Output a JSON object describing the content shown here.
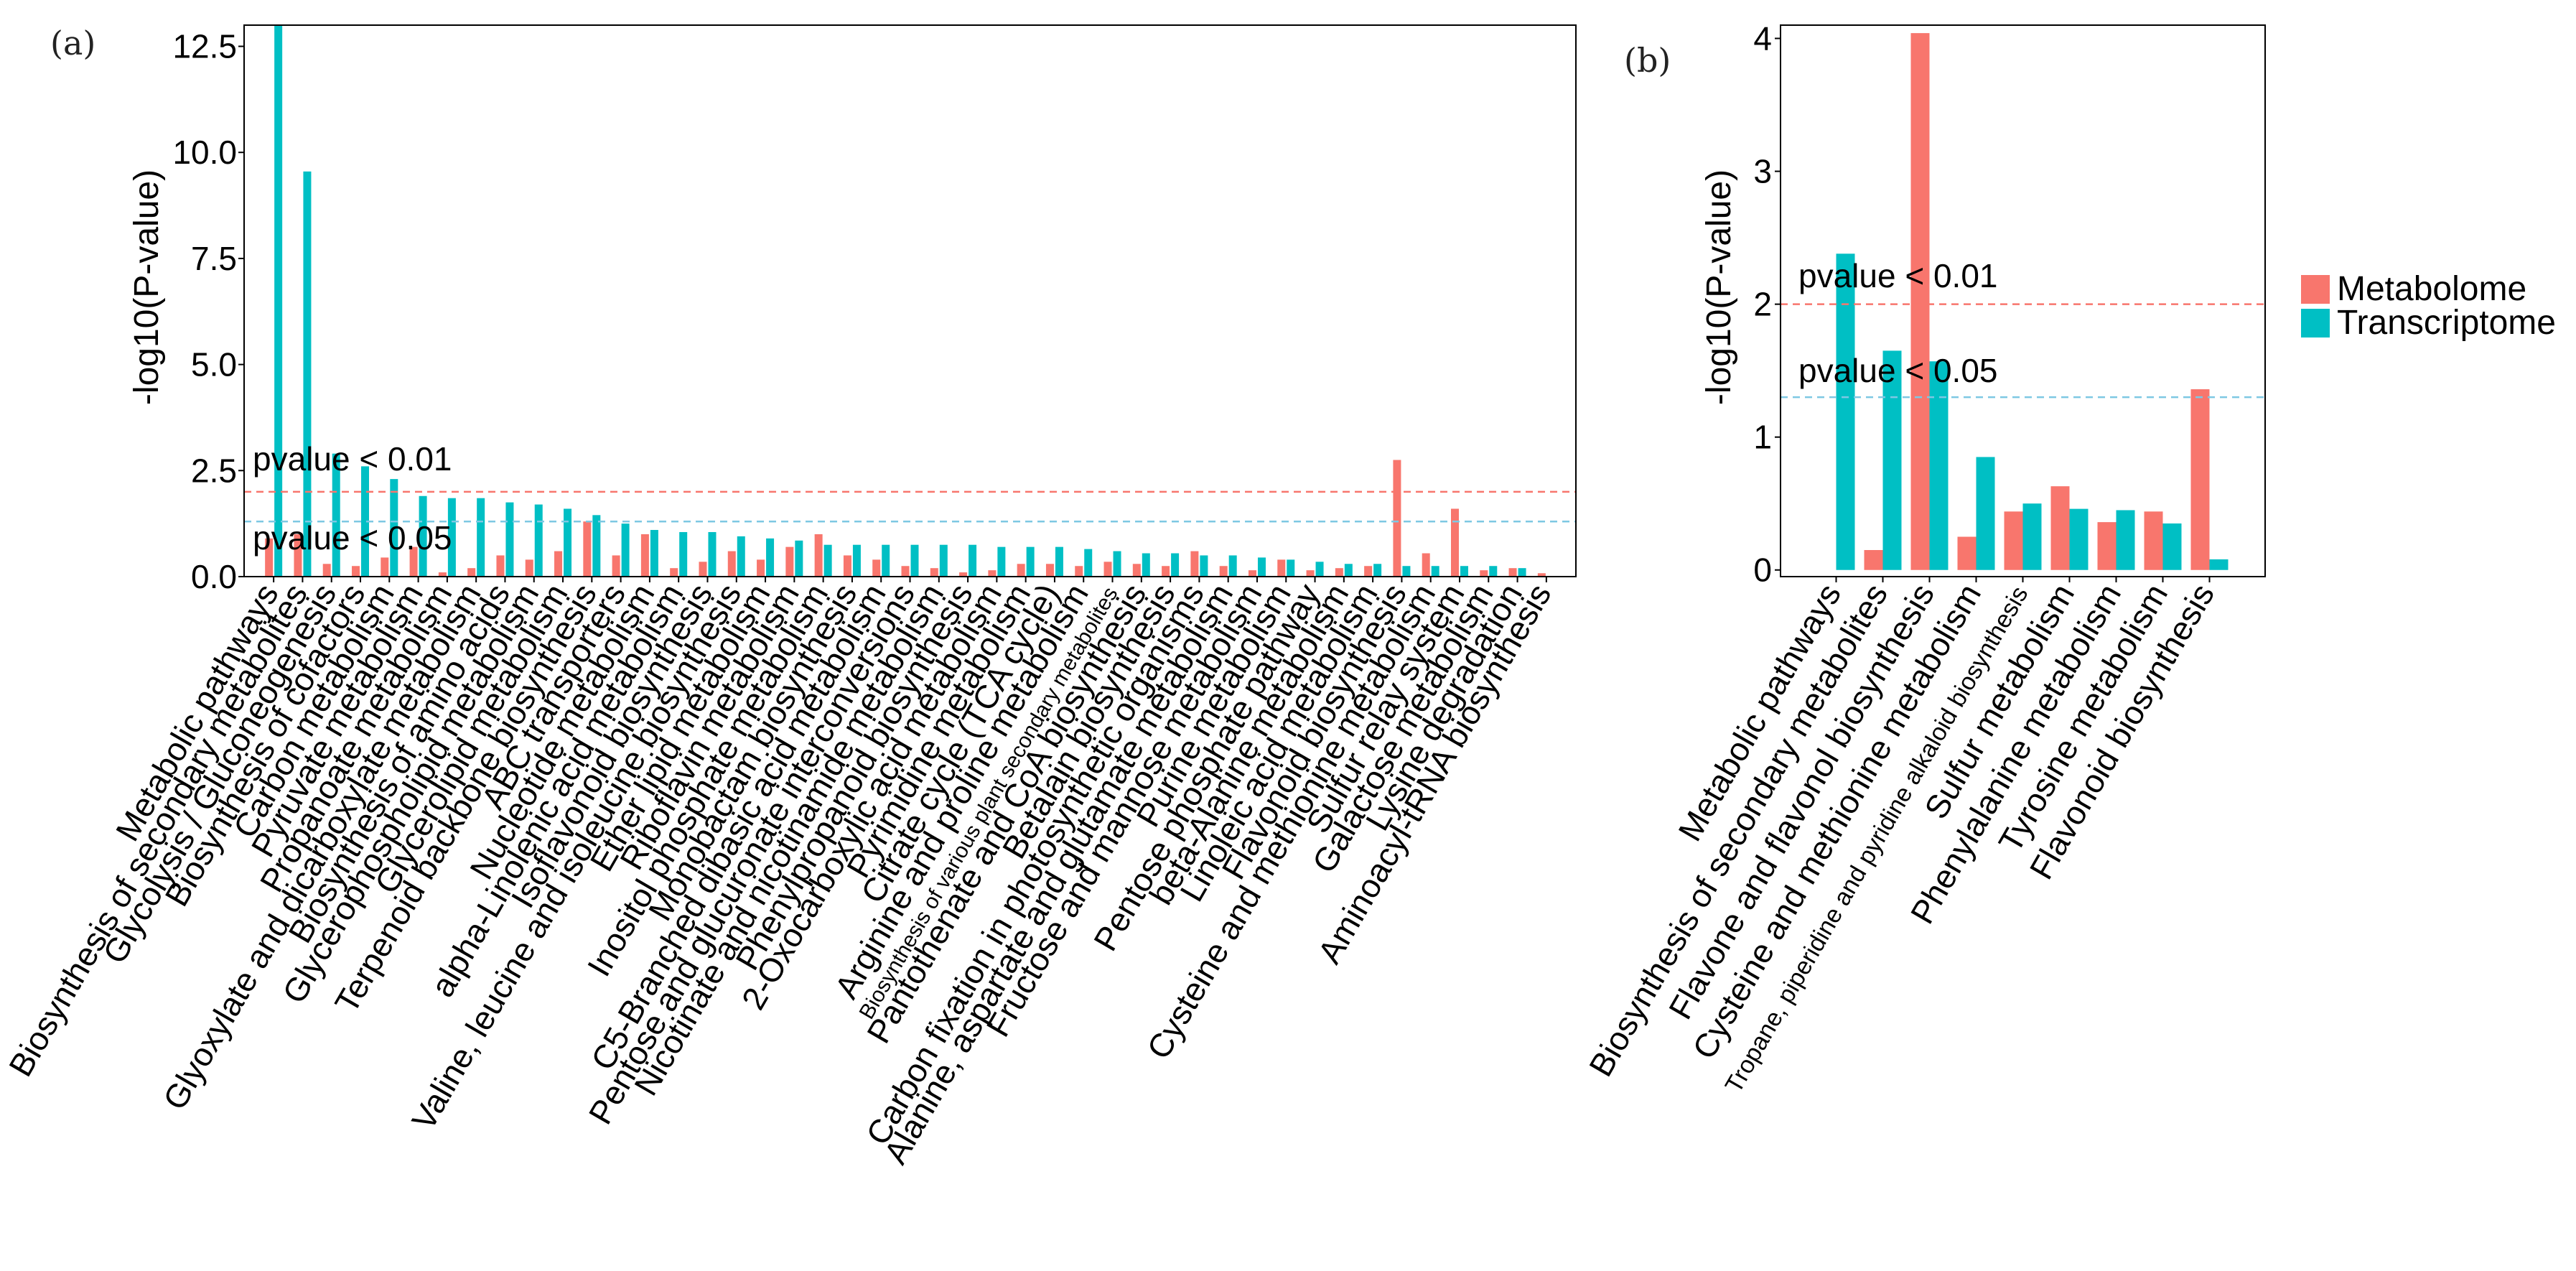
{
  "colors": {
    "metabolome": "#F8766D",
    "transcriptome": "#00BFC4",
    "thr001": "#F8766D",
    "thr005": "#7EC8E3"
  },
  "legend": {
    "items": [
      "Metabolome",
      "Transcriptome"
    ]
  },
  "chart_data": [
    {
      "type": "bar",
      "panel_label": "(a)",
      "ylabel": "-log10(P-value)",
      "ylim": [
        0,
        13
      ],
      "yticks": [
        0.0,
        2.5,
        5.0,
        7.5,
        10.0,
        12.5
      ],
      "ytick_labels": [
        "0.0",
        "2.5",
        "5.0",
        "7.5",
        "10.0",
        "12.5"
      ],
      "thresholds": [
        {
          "label": "pvalue < 0.01",
          "value": 2.0
        },
        {
          "label": "pvalue < 0.05",
          "value": 1.3
        }
      ],
      "categories": [
        "Metabolic pathways",
        "Biosynthesis of secondary metabolites",
        "Glycolysis / Gluconeogenesis",
        "Biosynthesis of cofactors",
        "Carbon metabolism",
        "Pyruvate metabolism",
        "Propanoate metabolism",
        "Glyoxylate and dicarboxylate metabolism",
        "Biosynthesis of amino acids",
        "Glycerophospholipid metabolism",
        "Glycerolipid metabolism",
        "Terpenoid backbone biosynthesis",
        "ABC transporters",
        "Nucleotide metabolism",
        "alpha-Linolenic acid metabolism",
        "Isoflavonoid biosynthesis",
        "Valine, leucine and isoleucine biosynthesis",
        "Ether lipid metabolism",
        "Riboflavin metabolism",
        "Inositol phosphate metabolism",
        "Monobactam biosynthesis",
        "C5-Branched dibasic acid metabolism",
        "Pentose and glucuronate interconversions",
        "Nicotinate and nicotinamide metabolism",
        "Phenylpropanoid biosynthesis",
        "2-Oxocarboxylic acid metabolism",
        "Pyrimidine metabolism",
        "Citrate cycle (TCA cycle)",
        "Arginine and proline metabolism",
        "Biosynthesis of various plant secondary metabolites",
        "Pantothenate and CoA biosynthesis",
        "Betalain biosynthesis",
        "Carbon fixation in photosynthetic organisms",
        "Alanine, aspartate and glutamate metabolism",
        "Fructose and mannose metabolism",
        "Purine metabolism",
        "Pentose phosphate pathway",
        "beta-Alanine metabolism",
        "Linoleic acid metabolism",
        "Flavonoid biosynthesis",
        "Cysteine and methionine metabolism",
        "Sulfur relay system",
        "Galactose metabolism",
        "Lysine degradation",
        "Aminoacyl-tRNA biosynthesis"
      ],
      "series": [
        {
          "name": "Metabolome",
          "values": [
            0.9,
            1.0,
            0.3,
            0.25,
            0.45,
            0.7,
            0.1,
            0.2,
            0.5,
            0.4,
            0.6,
            1.3,
            0.5,
            1.0,
            0.2,
            0.35,
            0.6,
            0.4,
            0.7,
            1.0,
            0.5,
            0.4,
            0.25,
            0.2,
            0.1,
            0.15,
            0.3,
            0.3,
            0.25,
            0.35,
            0.3,
            0.25,
            0.6,
            0.25,
            0.15,
            0.4,
            0.15,
            0.2,
            0.25,
            2.75,
            0.55,
            1.6,
            0.15,
            0.2,
            0.08
          ]
        },
        {
          "name": "Transcriptome",
          "values": [
            13.0,
            9.55,
            2.9,
            2.6,
            2.3,
            1.9,
            1.85,
            1.85,
            1.75,
            1.7,
            1.6,
            1.45,
            1.25,
            1.1,
            1.05,
            1.05,
            0.95,
            0.9,
            0.85,
            0.75,
            0.75,
            0.75,
            0.75,
            0.75,
            0.75,
            0.7,
            0.7,
            0.7,
            0.65,
            0.6,
            0.55,
            0.55,
            0.5,
            0.5,
            0.45,
            0.4,
            0.35,
            0.3,
            0.3,
            0.25,
            0.25,
            0.25,
            0.25,
            0.2,
            0.0
          ]
        }
      ]
    },
    {
      "type": "bar",
      "panel_label": "(b)",
      "ylabel": "-log10(P-value)",
      "ylim": [
        -0.05,
        4.1
      ],
      "yticks": [
        0,
        1,
        2,
        3,
        4
      ],
      "ytick_labels": [
        "0",
        "1",
        "2",
        "3",
        "4"
      ],
      "thresholds": [
        {
          "label": "pvalue < 0.01",
          "value": 2.0
        },
        {
          "label": "pvalue < 0.05",
          "value": 1.3
        }
      ],
      "categories": [
        "Metabolic pathways",
        "Biosynthesis of secondary metabolites",
        "Flavone and flavonol biosynthesis",
        "Cysteine and methionine metabolism",
        "Tropane, piperidine and pyridine alkaloid biosynthesis",
        "Sulfur metabolism",
        "Phenylalanine metabolism",
        "Tyrosine metabolism",
        "Flavonoid biosynthesis"
      ],
      "series": [
        {
          "name": "Metabolome",
          "values": [
            0.0,
            0.15,
            4.04,
            0.25,
            0.44,
            0.63,
            0.36,
            0.44,
            1.36
          ]
        },
        {
          "name": "Transcriptome",
          "values": [
            2.38,
            1.65,
            1.57,
            0.85,
            0.5,
            0.46,
            0.45,
            0.35,
            0.08
          ]
        }
      ]
    }
  ]
}
